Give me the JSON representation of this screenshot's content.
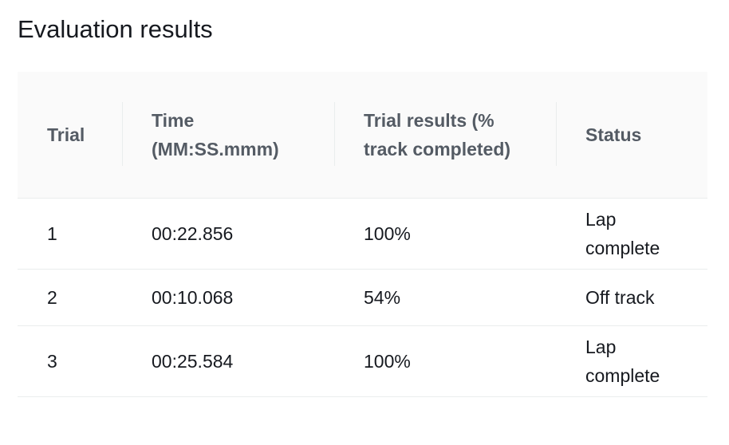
{
  "panel": {
    "title": "Evaluation results"
  },
  "table": {
    "columns": [
      "Trial",
      "Time (MM:SS.mmm)",
      "Trial results (% track completed)",
      "Status"
    ],
    "rows": [
      {
        "trial": "1",
        "time": "00:22.856",
        "result": "100%",
        "status": "Lap complete"
      },
      {
        "trial": "2",
        "time": "00:10.068",
        "result": "54%",
        "status": "Off track"
      },
      {
        "trial": "3",
        "time": "00:25.584",
        "result": "100%",
        "status": "Lap complete"
      }
    ]
  },
  "colors": {
    "header_background": "#fafafa",
    "header_text": "#545b64",
    "body_text": "#16191f",
    "divider": "#eaeded"
  }
}
